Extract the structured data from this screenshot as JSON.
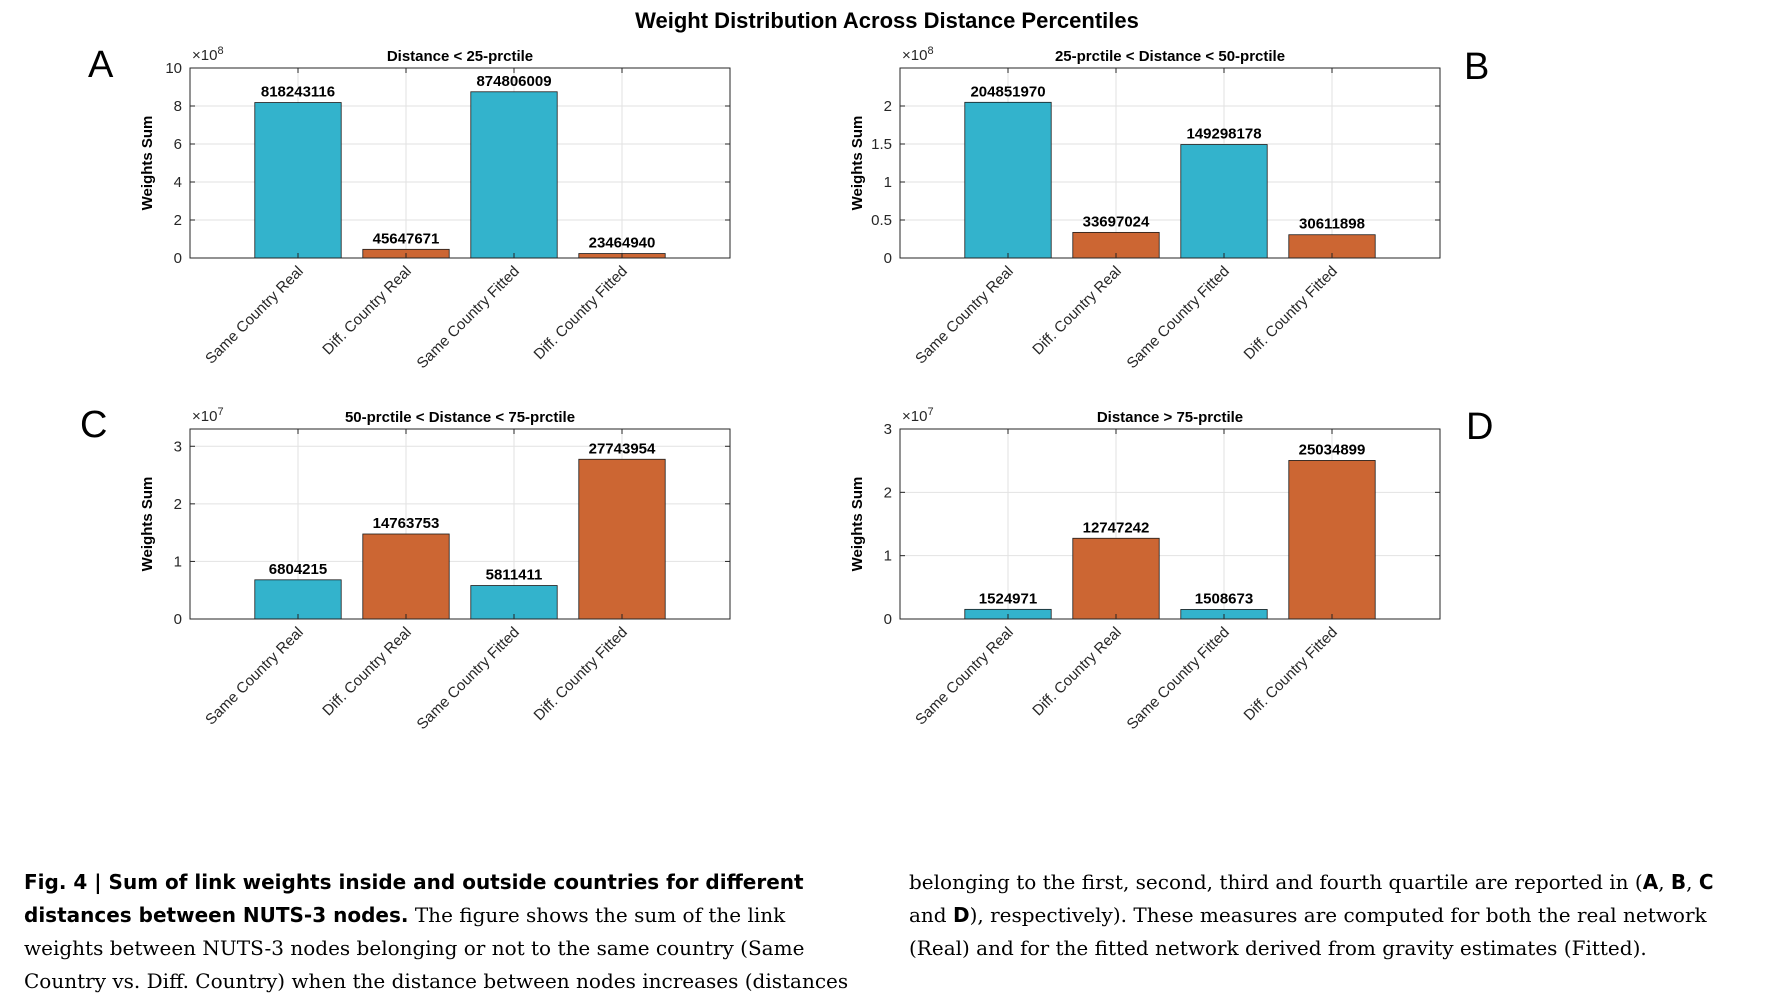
{
  "figure_title": "Weight Distribution Across Distance Percentiles",
  "colors": {
    "same_country": "#33B3CC",
    "diff_country": "#CC6633"
  },
  "chart_data": [
    {
      "panel": "A",
      "type": "bar",
      "title": "Distance < 25-prctile",
      "ylabel": "Weights Sum",
      "exponent_label": "×10",
      "exponent_power": "8",
      "scale": 100000000,
      "ylim": [
        0,
        10
      ],
      "yticks": [
        0,
        2,
        4,
        6,
        8,
        10
      ],
      "grid": true,
      "categories": [
        "Same Country Real",
        "Diff. Country Real",
        "Same Country Fitted",
        "Diff. Country Fitted"
      ],
      "values": [
        818243116,
        45647671,
        874806009,
        23464940
      ],
      "value_labels": [
        "818243116",
        "45647671",
        "874806009",
        "23464940"
      ]
    },
    {
      "panel": "B",
      "type": "bar",
      "title": "25-prctile < Distance < 50-prctile",
      "ylabel": "Weights Sum",
      "exponent_label": "×10",
      "exponent_power": "8",
      "scale": 100000000,
      "ylim": [
        0,
        2.5
      ],
      "yticks": [
        0,
        0.5,
        1,
        1.5,
        2
      ],
      "grid": true,
      "categories": [
        "Same Country Real",
        "Diff. Country Real",
        "Same Country Fitted",
        "Diff. Country Fitted"
      ],
      "values": [
        204851970,
        33697024,
        149298178,
        30611898
      ],
      "value_labels": [
        "204851970",
        "33697024",
        "149298178",
        "30611898"
      ]
    },
    {
      "panel": "C",
      "type": "bar",
      "title": "50-prctile < Distance < 75-prctile",
      "ylabel": "Weights Sum",
      "exponent_label": "×10",
      "exponent_power": "7",
      "scale": 10000000,
      "ylim": [
        0,
        3.3
      ],
      "yticks": [
        0,
        1,
        2,
        3
      ],
      "grid": true,
      "categories": [
        "Same Country Real",
        "Diff. Country Real",
        "Same Country Fitted",
        "Diff. Country Fitted"
      ],
      "values": [
        6804215,
        14763753,
        5811411,
        27743954
      ],
      "value_labels": [
        "6804215",
        "14763753",
        "5811411",
        "27743954"
      ]
    },
    {
      "panel": "D",
      "type": "bar",
      "title": "Distance > 75-prctile",
      "ylabel": "Weights Sum",
      "exponent_label": "×10",
      "exponent_power": "7",
      "scale": 10000000,
      "ylim": [
        0,
        3
      ],
      "yticks": [
        0,
        1,
        2,
        3
      ],
      "grid": true,
      "categories": [
        "Same Country Real",
        "Diff. Country Real",
        "Same Country Fitted",
        "Diff. Country Fitted"
      ],
      "values": [
        1524971,
        12747242,
        1508673,
        25034899
      ],
      "value_labels": [
        "1524971",
        "12747242",
        "1508673",
        "25034899"
      ]
    }
  ],
  "caption": {
    "label": "Fig. 4",
    "separator": " | ",
    "bold_title": "Sum of link weights inside and outside countries for different distances between NUTS-3 nodes.",
    "text_1": " The figure shows the sum of the link weights between NUTS-3 nodes belonging or not to the same country (Same Country vs. Diff. Country) when the distance between nodes increases (distances belonging to the first, second, third and fourth quartile are reported in (",
    "panel_a": "A",
    "sep_1": ", ",
    "panel_b": "B",
    "sep_2": ", ",
    "panel_c": "C",
    "sep_3": " and ",
    "panel_d": "D",
    "text_2": "), respectively). These measures are computed for both the real network (Real) and for the fitted network derived from gravity estimates (Fitted)."
  }
}
